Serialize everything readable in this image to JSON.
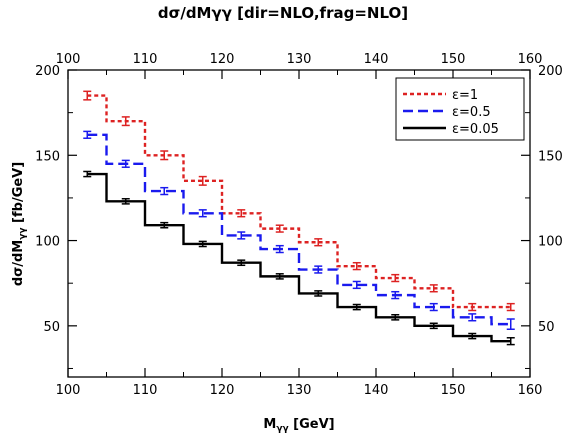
{
  "chart_data": {
    "type": "line",
    "step": true,
    "title": "dσ/dMγγ [dir=NLO,frag=NLO]",
    "xlabel_main": "M",
    "xlabel_sub": "γγ",
    "xlabel_tail": " [GeV]",
    "ylabel_main": "dσ/dM",
    "ylabel_sub": "γγ",
    "ylabel_tail": " [fb/GeV]",
    "xlim": [
      100,
      160
    ],
    "ylim": [
      20,
      200
    ],
    "xticks": [
      100,
      110,
      120,
      130,
      140,
      150,
      160
    ],
    "yticks": [
      50,
      100,
      150,
      200
    ],
    "legend_position": "top-right",
    "bin_edges": [
      100,
      105,
      110,
      115,
      120,
      125,
      130,
      135,
      140,
      145,
      150,
      155,
      160
    ],
    "series": [
      {
        "name": "ε=1",
        "color": "#dd2222",
        "dash": "dotted",
        "bin_centers": [
          102.5,
          107.5,
          112.5,
          117.5,
          122.5,
          127.5,
          132.5,
          137.5,
          142.5,
          147.5,
          152.5,
          157.5
        ],
        "values": [
          185,
          170,
          150,
          135,
          116,
          107,
          99,
          85,
          78,
          72,
          61,
          61
        ],
        "errors": [
          2.5,
          2.5,
          2.5,
          2.5,
          2,
          2,
          2,
          2,
          2,
          2,
          2,
          2
        ]
      },
      {
        "name": "ε=0.5",
        "color": "#1a1aee",
        "dash": "dashed",
        "bin_centers": [
          102.5,
          107.5,
          112.5,
          117.5,
          122.5,
          127.5,
          132.5,
          137.5,
          142.5,
          147.5,
          152.5,
          157.5
        ],
        "values": [
          162,
          145,
          129,
          116,
          103,
          95,
          83,
          74,
          68,
          61,
          55,
          51
        ],
        "errors": [
          2,
          2,
          2,
          2,
          2,
          2,
          2,
          2,
          2,
          2,
          2,
          3
        ]
      },
      {
        "name": "ε=0.05",
        "color": "#000000",
        "dash": "solid",
        "bin_centers": [
          102.5,
          107.5,
          112.5,
          117.5,
          122.5,
          127.5,
          132.5,
          137.5,
          142.5,
          147.5,
          152.5,
          157.5
        ],
        "values": [
          139,
          123,
          109,
          98,
          87,
          79,
          69,
          61,
          55,
          50,
          44,
          41
        ],
        "errors": [
          1.5,
          1.5,
          1.5,
          1.5,
          1.5,
          1.5,
          1.5,
          1.5,
          1.5,
          1.5,
          1.5,
          2
        ]
      }
    ]
  }
}
